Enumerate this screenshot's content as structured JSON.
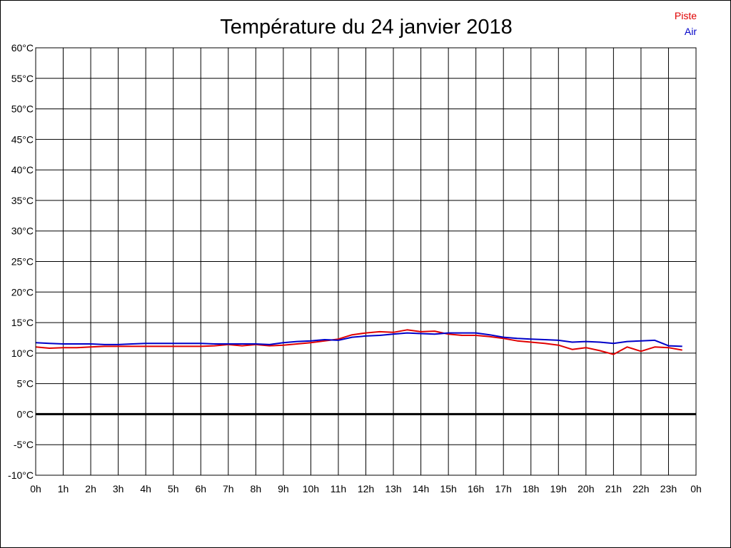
{
  "chart_data": {
    "type": "line",
    "title": "Température du 24 janvier 2018",
    "xlabel": "",
    "ylabel": "",
    "x_tick_labels": [
      "0h",
      "1h",
      "2h",
      "3h",
      "4h",
      "5h",
      "6h",
      "7h",
      "8h",
      "9h",
      "10h",
      "11h",
      "12h",
      "13h",
      "14h",
      "15h",
      "16h",
      "17h",
      "18h",
      "19h",
      "20h",
      "21h",
      "22h",
      "23h",
      "0h"
    ],
    "y_tick_labels": [
      "60°C",
      "55°C",
      "50°C",
      "45°C",
      "40°C",
      "35°C",
      "30°C",
      "25°C",
      "20°C",
      "15°C",
      "10°C",
      "5°C",
      "0°C",
      "-5°C",
      "-10°C"
    ],
    "xlim": [
      0,
      24
    ],
    "ylim": [
      -10,
      60
    ],
    "grid": true,
    "legend_position": "top-right",
    "series": [
      {
        "name": "Piste",
        "color": "#e00000",
        "x": [
          0,
          0.5,
          1,
          1.5,
          2,
          2.5,
          3,
          3.5,
          4,
          4.5,
          5,
          5.5,
          6,
          6.5,
          7,
          7.5,
          8,
          8.5,
          9,
          9.5,
          10,
          10.5,
          11,
          11.5,
          12,
          12.5,
          13,
          13.5,
          14,
          14.5,
          15,
          15.5,
          16,
          16.5,
          17,
          17.5,
          18,
          18.5,
          19,
          19.5,
          20,
          20.5,
          21,
          21.5,
          22,
          22.5,
          23,
          23.5
        ],
        "values": [
          11.0,
          10.8,
          10.9,
          10.9,
          11.0,
          11.1,
          11.1,
          11.1,
          11.1,
          11.1,
          11.1,
          11.1,
          11.1,
          11.2,
          11.4,
          11.2,
          11.4,
          11.2,
          11.3,
          11.5,
          11.7,
          12.0,
          12.3,
          13.0,
          13.3,
          13.5,
          13.4,
          13.8,
          13.5,
          13.6,
          13.1,
          12.9,
          12.9,
          12.7,
          12.4,
          12.0,
          11.8,
          11.6,
          11.3,
          10.6,
          10.9,
          10.4,
          9.8,
          11.0,
          10.3,
          11.0,
          10.9,
          10.5
        ]
      },
      {
        "name": "Air",
        "color": "#0000c8",
        "x": [
          0,
          0.5,
          1,
          1.5,
          2,
          2.5,
          3,
          3.5,
          4,
          4.5,
          5,
          5.5,
          6,
          6.5,
          7,
          7.5,
          8,
          8.5,
          9,
          9.5,
          10,
          10.5,
          11,
          11.5,
          12,
          12.5,
          13,
          13.5,
          14,
          14.5,
          15,
          15.5,
          16,
          16.5,
          17,
          17.5,
          18,
          18.5,
          19,
          19.5,
          20,
          20.5,
          21,
          21.5,
          22,
          22.5,
          23,
          23.5
        ],
        "values": [
          11.7,
          11.6,
          11.5,
          11.5,
          11.5,
          11.4,
          11.4,
          11.5,
          11.6,
          11.6,
          11.6,
          11.6,
          11.6,
          11.5,
          11.5,
          11.5,
          11.5,
          11.4,
          11.7,
          11.9,
          12.0,
          12.2,
          12.1,
          12.6,
          12.8,
          12.9,
          13.1,
          13.3,
          13.2,
          13.1,
          13.3,
          13.3,
          13.3,
          13.0,
          12.6,
          12.4,
          12.3,
          12.2,
          12.1,
          11.8,
          11.9,
          11.8,
          11.6,
          11.9,
          12.0,
          12.1,
          11.2,
          11.1
        ]
      }
    ]
  }
}
